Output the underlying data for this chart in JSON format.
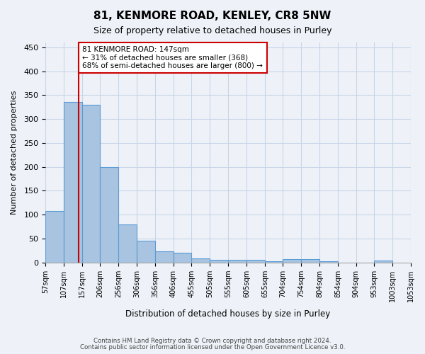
{
  "title": "81, KENMORE ROAD, KENLEY, CR8 5NW",
  "subtitle": "Size of property relative to detached houses in Purley",
  "xlabel": "Distribution of detached houses by size in Purley",
  "ylabel": "Number of detached properties",
  "bar_values": [
    108,
    335,
    330,
    200,
    80,
    46,
    23,
    20,
    9,
    6,
    6,
    6,
    2,
    7,
    7,
    2,
    0,
    0,
    4
  ],
  "bin_starts": [
    57,
    107,
    157,
    206,
    256,
    306,
    356,
    406,
    455,
    505,
    555,
    605,
    655,
    704,
    754,
    804,
    854,
    904,
    953
  ],
  "bin_labels": [
    "57sqm",
    "107sqm",
    "157sqm",
    "206sqm",
    "256sqm",
    "306sqm",
    "356sqm",
    "406sqm",
    "455sqm",
    "505sqm",
    "555sqm",
    "605sqm",
    "655sqm",
    "704sqm",
    "754sqm",
    "804sqm",
    "854sqm",
    "904sqm",
    "953sqm",
    "1003sqm",
    "1053sqm"
  ],
  "tick_positions": [
    57,
    107,
    157,
    206,
    256,
    306,
    356,
    406,
    455,
    505,
    555,
    605,
    655,
    704,
    754,
    804,
    854,
    904,
    953,
    1003,
    1053
  ],
  "bar_color": "#a8c4e0",
  "bar_edge_color": "#5b9bd5",
  "property_line_x": 147,
  "annotation_text": "81 KENMORE ROAD: 147sqm\n← 31% of detached houses are smaller (368)\n68% of semi-detached houses are larger (800) →",
  "annotation_box_color": "#ffffff",
  "annotation_border_color": "#cc0000",
  "property_line_color": "#cc0000",
  "ylim": [
    0,
    460
  ],
  "yticks": [
    0,
    50,
    100,
    150,
    200,
    250,
    300,
    350,
    400,
    450
  ],
  "footer_line1": "Contains HM Land Registry data © Crown copyright and database right 2024.",
  "footer_line2": "Contains public sector information licensed under the Open Government Licence v3.0.",
  "bg_color": "#eef2f8",
  "plot_bg_color": "#eef2f8",
  "grid_color": "#c8d4e8"
}
